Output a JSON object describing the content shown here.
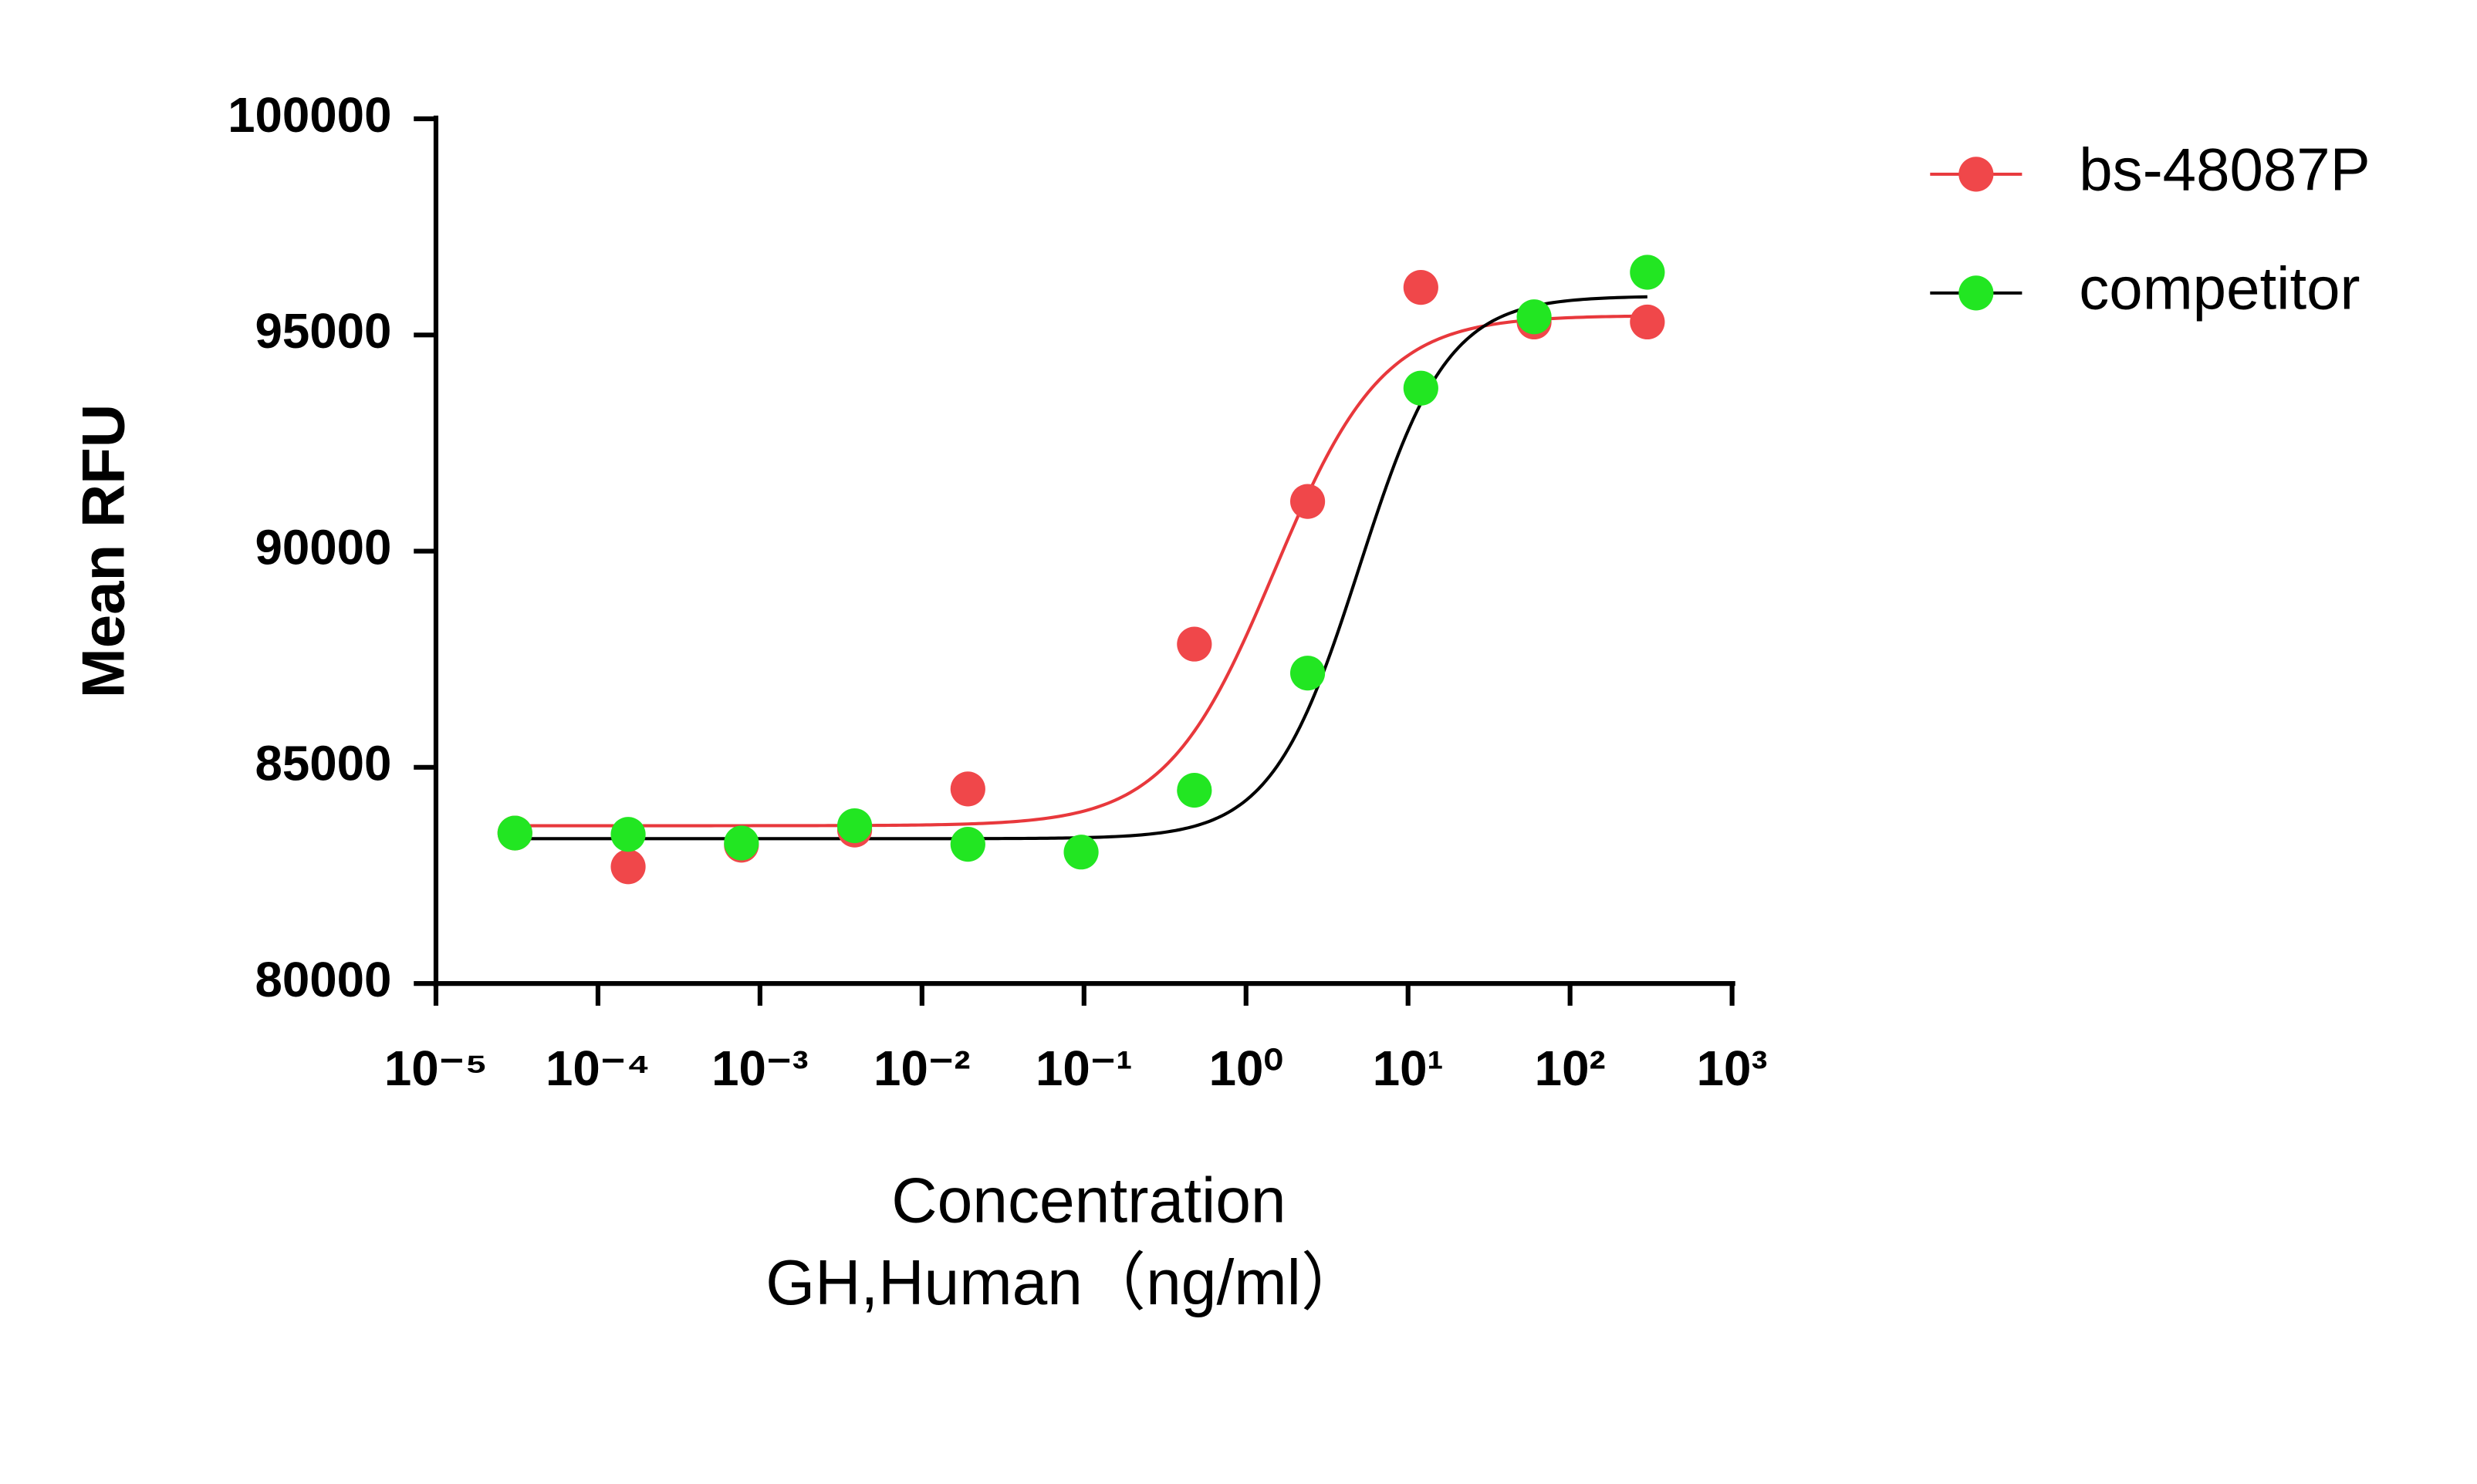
{
  "chart_data": {
    "type": "scatter",
    "ylabel": "Mean RFU",
    "xlabel": [
      "Concentration",
      "GH,Human（ng/ml）"
    ],
    "xscale": "log",
    "x": [
      3.072e-05,
      0.0001536,
      0.000768,
      0.00384,
      0.0192,
      0.096,
      0.48,
      2.4,
      12,
      60,
      300
    ],
    "series": [
      {
        "name": "bs-48087P",
        "color": "#f0474a",
        "line_color": "#e8383c",
        "values": [
          83480,
          82700,
          83200,
          83550,
          84500,
          null,
          87850,
          91150,
          96100,
          95300,
          95300
        ],
        "fit": {
          "bottom": 83650,
          "top": 95450,
          "ec50": 1.5,
          "hill": 1.3
        }
      },
      {
        "name": "competitor",
        "color": "#22e622",
        "line_color": "#000000",
        "values": [
          83480,
          83450,
          83250,
          83650,
          83220,
          83040,
          84470,
          87180,
          93770,
          95420,
          96450
        ],
        "fit": {
          "bottom": 83350,
          "top": 95900,
          "ec50": 5,
          "hill": 1.6
        }
      }
    ],
    "xlim": [
      1e-05,
      1000
    ],
    "xticks": [
      {
        "value": 1e-05,
        "label": "10⁻⁵"
      },
      {
        "value": 0.0001,
        "label": "10⁻⁴"
      },
      {
        "value": 0.001,
        "label": "10⁻³"
      },
      {
        "value": 0.01,
        "label": "10⁻²"
      },
      {
        "value": 0.1,
        "label": "10⁻¹"
      },
      {
        "value": 1,
        "label": "10⁰"
      },
      {
        "value": 10,
        "label": "10¹"
      },
      {
        "value": 100,
        "label": "10²"
      },
      {
        "value": 1000,
        "label": "10³"
      }
    ],
    "ylim": [
      80000,
      100000
    ],
    "yticks": [
      80000,
      85000,
      90000,
      95000,
      100000
    ],
    "legend": "top-right"
  }
}
